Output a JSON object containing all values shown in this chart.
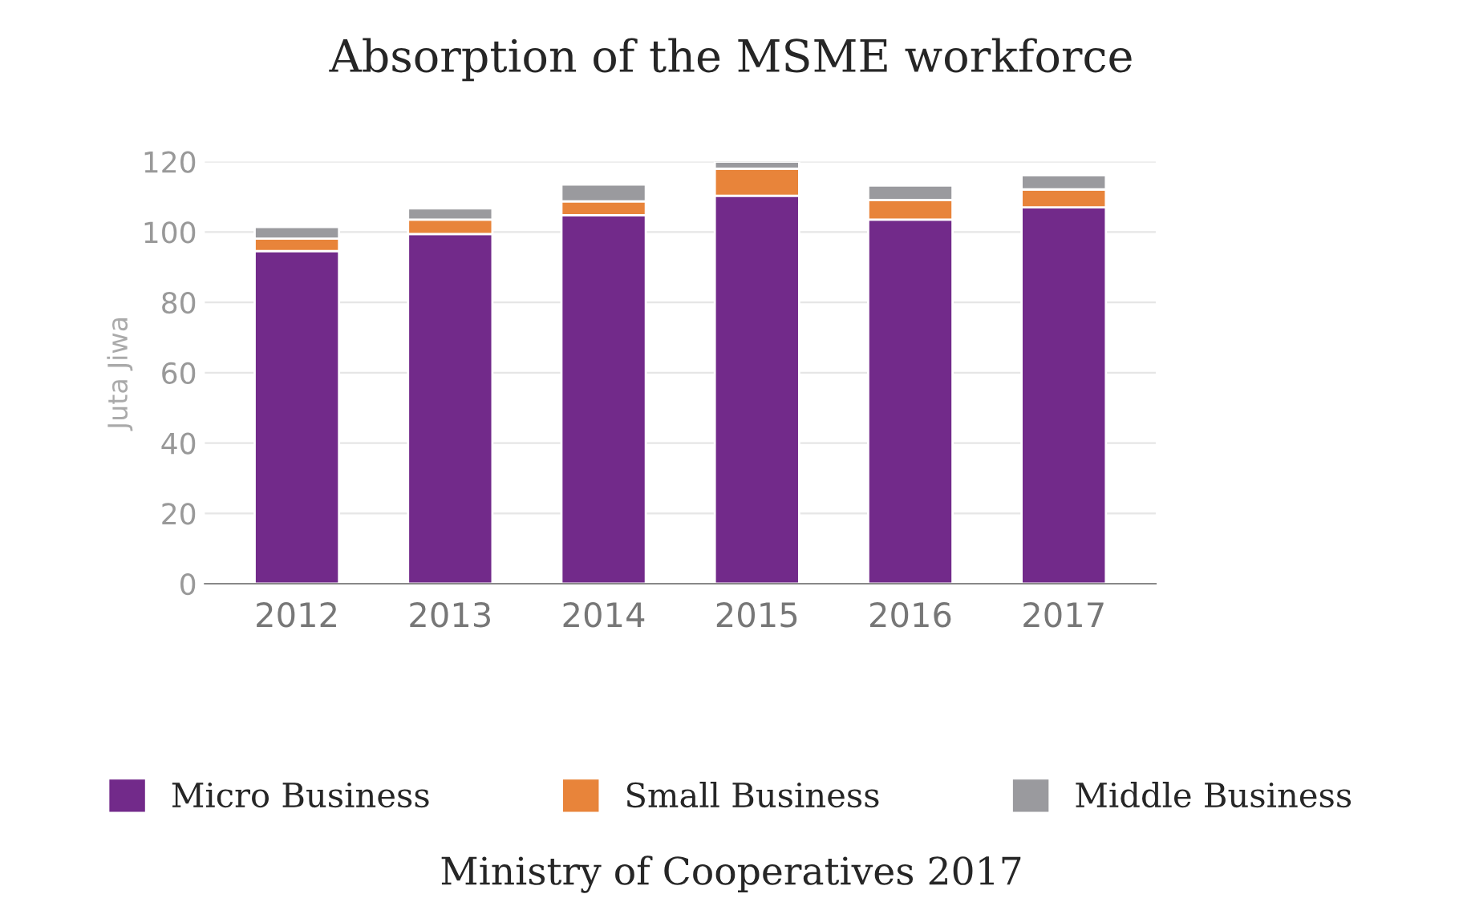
{
  "chart_data": {
    "type": "bar",
    "title": "Absorption of the MSME workforce",
    "ylabel": "Juta Jiwa",
    "categories": [
      "2012",
      "2013",
      "2014",
      "2015",
      "2016",
      "2017"
    ],
    "stacked": true,
    "series": [
      {
        "name": "Micro Business",
        "color": "#722a8a",
        "values": [
          94.6,
          99.4,
          104.8,
          110.3,
          103.5,
          107.0
        ]
      },
      {
        "name": "Small Business",
        "color": "#e8843a",
        "values": [
          3.5,
          4.1,
          3.9,
          7.7,
          5.6,
          5.1
        ]
      },
      {
        "name": "Middle Business",
        "color": "#9a9a9e",
        "values": [
          3.3,
          3.2,
          4.8,
          2.0,
          4.1,
          4.0
        ]
      }
    ],
    "ylim": [
      0,
      120
    ],
    "yticks": [
      0,
      20,
      40,
      60,
      80,
      100,
      120
    ],
    "grid": "y",
    "legend": "bottom",
    "annotations": [
      "Ministry of Cooperatives 2017"
    ]
  }
}
